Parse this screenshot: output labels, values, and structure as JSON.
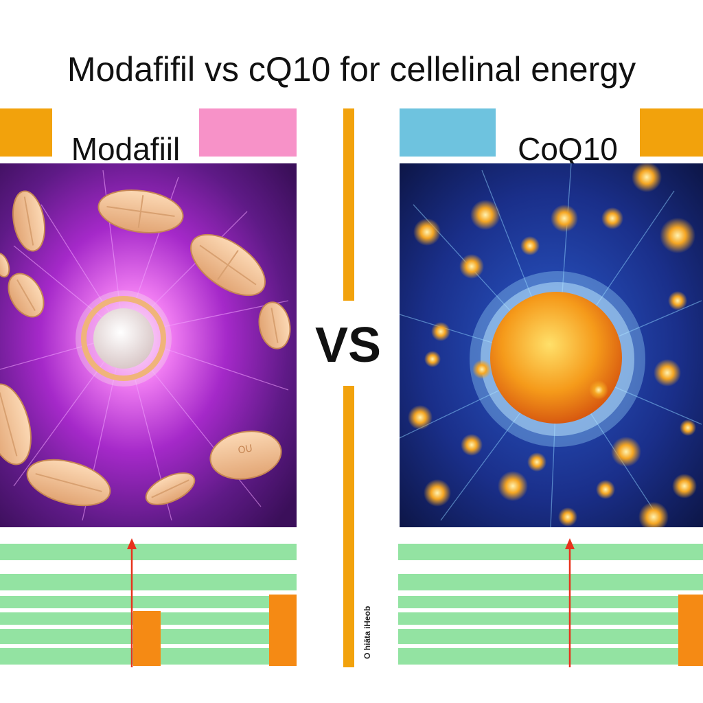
{
  "title": "Modafifil vs cQ10 for cellelinal energy",
  "divider_label": "VS",
  "side_caption": "O hiāta iHeob",
  "left_panel": {
    "label": "Modafiil",
    "pill_imprint": "OU",
    "accent_colors": {
      "tab_left": "#f2a20c",
      "tab_right": "#f792c8",
      "glow": "#c03ee0"
    }
  },
  "right_panel": {
    "label": "CoQ10",
    "accent_colors": {
      "tab_left": "#6ec3df",
      "tab_right": "#f2a20c",
      "glow": "#4aa8ff",
      "core": "#f59a1a"
    }
  },
  "colors": {
    "divider": "#f2a20c",
    "band": "#93e3a2",
    "arrow": "#e8321c",
    "block": "#f58a14"
  }
}
